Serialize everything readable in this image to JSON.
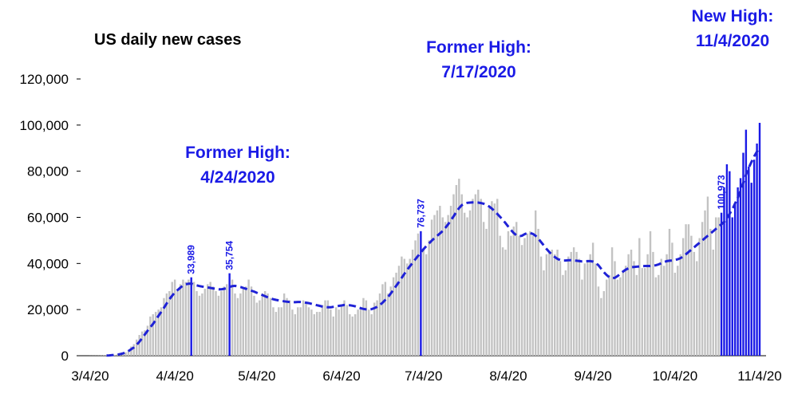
{
  "chart_data": {
    "type": "bar",
    "title": "US daily new cases",
    "categories": [
      "3/4/20",
      null,
      null,
      null,
      null,
      null,
      null,
      null,
      null,
      null,
      null,
      null,
      null,
      null,
      null,
      null,
      null,
      null,
      null,
      null,
      null,
      null,
      null,
      null,
      null,
      null,
      null,
      null,
      null,
      null,
      null,
      "4/4/20",
      null,
      null,
      null,
      null,
      null,
      null,
      null,
      null,
      null,
      null,
      null,
      null,
      null,
      null,
      null,
      null,
      null,
      null,
      null,
      null,
      null,
      null,
      null,
      null,
      null,
      null,
      null,
      null,
      null,
      "5/4/20",
      null,
      null,
      null,
      null,
      null,
      null,
      null,
      null,
      null,
      null,
      null,
      null,
      null,
      null,
      null,
      null,
      null,
      null,
      null,
      null,
      null,
      null,
      null,
      null,
      null,
      null,
      null,
      null,
      null,
      null,
      "6/4/20",
      null,
      null,
      null,
      null,
      null,
      null,
      null,
      null,
      null,
      null,
      null,
      null,
      null,
      null,
      null,
      null,
      null,
      null,
      null,
      null,
      null,
      null,
      null,
      null,
      null,
      null,
      null,
      null,
      null,
      "7/4/20",
      null,
      null,
      null,
      null,
      null,
      null,
      null,
      null,
      null,
      null,
      null,
      null,
      null,
      null,
      null,
      null,
      null,
      null,
      null,
      null,
      null,
      null,
      null,
      null,
      null,
      null,
      null,
      null,
      null,
      null,
      "8/4/20",
      null,
      null,
      null,
      null,
      null,
      null,
      null,
      null,
      null,
      null,
      null,
      null,
      null,
      null,
      null,
      null,
      null,
      null,
      null,
      null,
      null,
      null,
      null,
      null,
      null,
      null,
      null,
      null,
      null,
      null,
      "9/4/20",
      null,
      null,
      null,
      null,
      null,
      null,
      null,
      null,
      null,
      null,
      null,
      null,
      null,
      null,
      null,
      null,
      null,
      null,
      null,
      null,
      null,
      null,
      null,
      null,
      null,
      null,
      null,
      null,
      null,
      "10/4/20",
      null,
      null,
      null,
      null,
      null,
      null,
      null,
      null,
      null,
      null,
      null,
      null,
      null,
      null,
      null,
      null,
      null,
      null,
      null,
      null,
      null,
      null,
      null,
      null,
      null,
      null,
      null,
      null,
      null,
      null,
      "11/4/20"
    ],
    "series": [
      {
        "type": "bar",
        "color": "#c3c3c3",
        "label_color": "#1a1ae6",
        "values": [
          20,
          30,
          40,
          50,
          70,
          100,
          150,
          200,
          300,
          400,
          600,
          700,
          1000,
          1500,
          2500,
          4000,
          5000,
          7000,
          9000,
          10500,
          11000,
          13000,
          17000,
          18000,
          19000,
          20000,
          21000,
          25000,
          27000,
          28000,
          32000,
          33000,
          28000,
          31000,
          33000,
          32000,
          33000,
          33989,
          32000,
          28000,
          26000,
          27000,
          29000,
          31000,
          32000,
          30000,
          28000,
          26000,
          28000,
          30000,
          31000,
          35754,
          33000,
          27000,
          25000,
          27000,
          29000,
          30000,
          33000,
          30000,
          26000,
          23000,
          24000,
          27000,
          28000,
          27000,
          25000,
          21000,
          19000,
          21000,
          21000,
          27000,
          25000,
          24000,
          20000,
          18000,
          21000,
          21000,
          24000,
          23000,
          21000,
          20000,
          18000,
          19000,
          19000,
          22000,
          24000,
          24000,
          20000,
          17000,
          21000,
          20000,
          22000,
          24000,
          22000,
          18000,
          17000,
          18000,
          20000,
          21000,
          25000,
          24000,
          20000,
          18000,
          23000,
          24000,
          27000,
          31000,
          32000,
          27000,
          30000,
          34000,
          36000,
          39000,
          43000,
          42000,
          40000,
          42000,
          46000,
          50000,
          53000,
          54000,
          46000,
          44000,
          50000,
          59000,
          61000,
          63000,
          65000,
          60000,
          58000,
          61000,
          65000,
          70000,
          74000,
          76737,
          70000,
          62000,
          60000,
          63000,
          68000,
          70000,
          72000,
          68000,
          58000,
          55000,
          64000,
          67000,
          66000,
          68000,
          52000,
          47000,
          46000,
          54000,
          52000,
          56000,
          58000,
          52000,
          48000,
          51000,
          53000,
          54000,
          52000,
          63000,
          55000,
          43000,
          37000,
          44000,
          45000,
          46000,
          44000,
          46000,
          41000,
          35000,
          37000,
          43000,
          45000,
          47000,
          45000,
          42000,
          33000,
          40000,
          41000,
          44000,
          49000,
          40000,
          30000,
          25000,
          28000,
          33000,
          35000,
          47000,
          41000,
          33000,
          34000,
          37000,
          39000,
          44000,
          46000,
          41000,
          35000,
          51000,
          38000,
          38000,
          44000,
          54000,
          45000,
          34000,
          35000,
          42000,
          39000,
          44000,
          55000,
          49000,
          36000,
          39000,
          44000,
          51000,
          57000,
          57000,
          52000,
          45000,
          41000,
          51000,
          58000,
          63000,
          69000,
          55000,
          46000,
          60000,
          60000,
          62000,
          73000,
          83000,
          80000,
          60000,
          66000,
          73000,
          77000,
          88000,
          98000,
          82000,
          75000,
          85000,
          92000,
          100973
        ],
        "value_labels": [
          null,
          null,
          null,
          null,
          null,
          null,
          null,
          null,
          null,
          null,
          null,
          null,
          null,
          null,
          null,
          null,
          null,
          null,
          null,
          null,
          null,
          null,
          null,
          null,
          null,
          null,
          null,
          null,
          null,
          null,
          null,
          null,
          null,
          null,
          null,
          null,
          null,
          "33,989",
          null,
          null,
          null,
          null,
          null,
          null,
          null,
          null,
          null,
          null,
          null,
          null,
          null,
          "35,754",
          null,
          null,
          null,
          null,
          null,
          null,
          null,
          null,
          null,
          null,
          null,
          null,
          null,
          null,
          null,
          null,
          null,
          null,
          null,
          null,
          null,
          null,
          null,
          null,
          null,
          null,
          null,
          null,
          null,
          null,
          null,
          null,
          null,
          null,
          null,
          null,
          null,
          null,
          null,
          null,
          null,
          null,
          null,
          null,
          null,
          null,
          null,
          null,
          null,
          null,
          null,
          null,
          null,
          null,
          null,
          null,
          null,
          null,
          null,
          null,
          null,
          null,
          null,
          null,
          null,
          null,
          null,
          null,
          null,
          "76,737",
          null,
          null,
          null,
          null,
          null,
          null,
          null,
          null,
          null,
          null,
          null,
          null,
          null,
          null,
          null,
          null,
          null,
          null,
          null,
          null,
          null,
          null,
          null,
          null,
          null,
          null,
          null,
          null,
          null,
          null,
          null,
          null,
          null,
          null,
          null,
          null,
          null,
          null,
          null,
          null,
          null,
          null,
          null,
          null,
          null,
          null,
          null,
          null,
          null,
          null,
          null,
          null,
          null,
          null,
          null,
          null,
          null,
          null,
          null,
          null,
          null,
          null,
          null,
          null,
          null,
          null,
          null,
          null,
          null,
          null,
          null,
          null,
          null,
          null,
          null,
          null,
          null,
          null,
          null,
          null,
          null,
          null,
          null,
          null,
          null,
          null,
          null,
          null,
          null,
          null,
          null,
          null,
          null,
          null,
          null,
          null,
          null,
          null,
          null,
          null,
          null,
          null,
          null,
          null,
          null,
          null,
          null,
          null,
          null,
          "100,973"
        ]
      },
      {
        "type": "line",
        "color": "#1f22d6",
        "dashed": true,
        "values": [
          null,
          null,
          null,
          null,
          null,
          null,
          100,
          150,
          250,
          350,
          500,
          700,
          1000,
          1400,
          2000,
          2800,
          3600,
          4700,
          6000,
          7600,
          9200,
          10800,
          12300,
          13800,
          15500,
          17300,
          19000,
          20800,
          22700,
          24500,
          26000,
          27500,
          28500,
          29500,
          30500,
          31000,
          31200,
          31300,
          30800,
          30500,
          30200,
          30000,
          29800,
          29600,
          29400,
          29200,
          29000,
          28800,
          28800,
          29000,
          29300,
          29800,
          30200,
          30300,
          30100,
          29800,
          29400,
          29000,
          28600,
          28200,
          27800,
          27300,
          26800,
          26300,
          25800,
          25300,
          24900,
          24500,
          24200,
          24000,
          23800,
          23600,
          23400,
          23300,
          23200,
          23200,
          23300,
          23300,
          23200,
          23000,
          22800,
          22500,
          22200,
          21900,
          21600,
          21300,
          21100,
          21000,
          21000,
          21200,
          21400,
          21600,
          21800,
          22000,
          22000,
          21900,
          21700,
          21400,
          21000,
          20600,
          20300,
          20100,
          20000,
          20200,
          20600,
          21200,
          22000,
          23000,
          24200,
          25500,
          27000,
          28600,
          30300,
          32000,
          33800,
          35500,
          37200,
          38800,
          40300,
          41800,
          43300,
          44800,
          46200,
          47500,
          48700,
          49900,
          51000,
          52000,
          53000,
          54100,
          55500,
          57000,
          58700,
          60500,
          62300,
          64000,
          65300,
          66000,
          66300,
          66400,
          66500,
          66500,
          66400,
          66200,
          65900,
          65400,
          64700,
          63800,
          62700,
          61500,
          60200,
          58900,
          57500,
          56000,
          54500,
          53200,
          52200,
          51800,
          52000,
          52700,
          53200,
          53200,
          52800,
          52000,
          50800,
          49300,
          47800,
          46300,
          45000,
          43800,
          42800,
          42000,
          41500,
          41300,
          41300,
          41400,
          41400,
          41300,
          41200,
          41000,
          40900,
          40900,
          41000,
          41000,
          40800,
          40300,
          39200,
          37700,
          36200,
          35000,
          34000,
          33600,
          33800,
          34500,
          35500,
          36500,
          37300,
          37900,
          38300,
          38500,
          38600,
          38700,
          38800,
          38900,
          38900,
          38900,
          39000,
          39200,
          39600,
          40100,
          40600,
          41000,
          41200,
          41300,
          41500,
          41800,
          42300,
          43000,
          44000,
          45000,
          46000,
          47000,
          48000,
          49000,
          50000,
          51000,
          52000,
          53000,
          54000,
          55000,
          56000,
          57000,
          58000,
          59500,
          61500,
          63500,
          66000,
          68500,
          71500,
          75000,
          78500,
          81500,
          84000,
          86500,
          88500,
          90500
        ]
      }
    ],
    "ylim": [
      0,
      120000
    ],
    "yticks": [
      0,
      {
        "value": 20000,
        "label": "20,000"
      },
      {
        "value": 40000,
        "label": "40,000"
      },
      {
        "value": 60000,
        "label": "60,000"
      },
      {
        "value": 80000,
        "label": "80,000"
      },
      {
        "value": 100000,
        "label": "100,000"
      },
      {
        "value": 120000,
        "label": "120,000"
      }
    ],
    "grid": false,
    "annotations": [
      {
        "lines": [
          "Former High:",
          "4/24/2020"
        ]
      },
      {
        "lines": [
          "Former High:",
          "7/17/2020"
        ]
      },
      {
        "lines": [
          "New High:",
          "11/4/2020"
        ]
      }
    ]
  }
}
